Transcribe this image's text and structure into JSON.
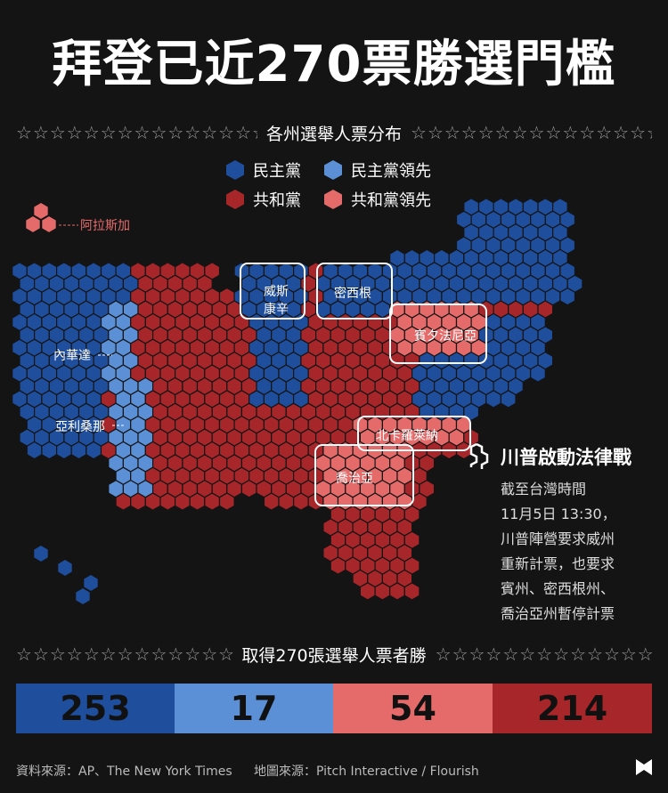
{
  "title": "拜登已近270票勝選門檻",
  "stars": "☆☆☆☆☆☆☆☆☆☆☆☆☆☆☆☆☆☆☆☆☆☆",
  "section1": "各州選舉人票分布",
  "section2": "取得270張選舉人票者勝",
  "legend": {
    "dem": {
      "label": "民主黨",
      "color": "#1f4e9c"
    },
    "dem_lead": {
      "label": "民主黨領先",
      "color": "#5b8fd6"
    },
    "rep": {
      "label": "共和黨",
      "color": "#a6262a"
    },
    "rep_lead": {
      "label": "共和黨領先",
      "color": "#e56b6b"
    }
  },
  "alaska_label": "阿拉斯加",
  "states": {
    "wisconsin": "威斯\n康辛",
    "michigan": "密西根",
    "pennsylvania": "賓夕法尼亞",
    "nevada": "內華達",
    "arizona": "亞利桑那",
    "north_carolina": "北卡羅萊納",
    "georgia": "喬治亞"
  },
  "trump": {
    "heading": "川普啟動法律戰",
    "lines": [
      "截至台灣時間",
      "11月5日 13:30，",
      "川普陣營要求威州",
      "重新計票，也要求",
      "賓州、密西根州、",
      "喬治亞州暫停計票"
    ]
  },
  "tally": [
    {
      "value": "253",
      "color": "#1f4e9c"
    },
    {
      "value": "17",
      "color": "#5b8fd6"
    },
    {
      "value": "54",
      "color": "#e56b6b"
    },
    {
      "value": "214",
      "color": "#a6262a"
    }
  ],
  "sources": {
    "data": "資料來源：AP、The New York Times",
    "map": "地圖來源：Pitch Interactive / Flourish"
  }
}
